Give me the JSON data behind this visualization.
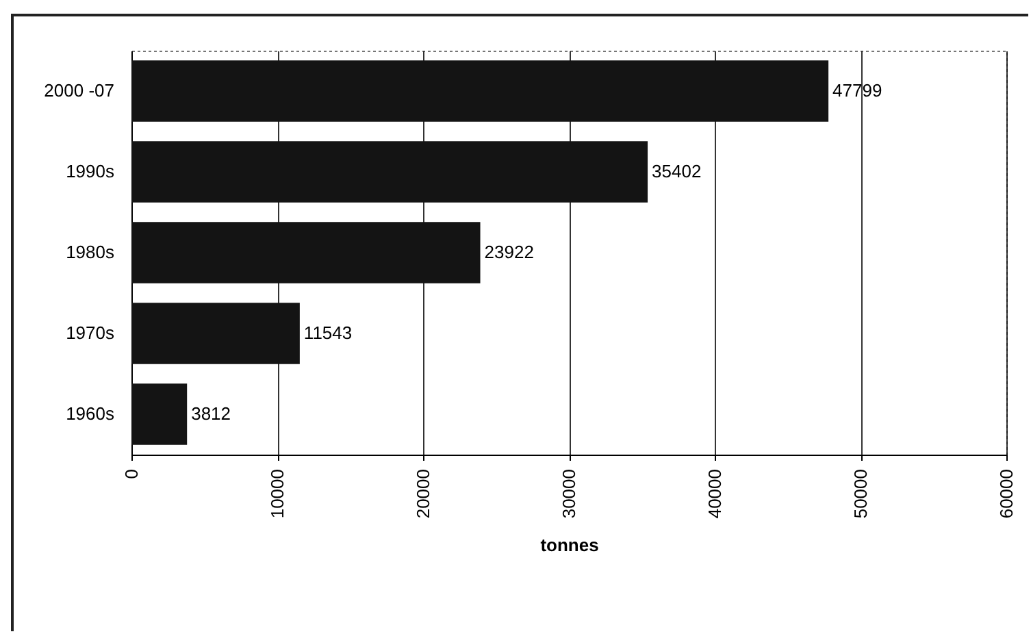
{
  "chart_data": {
    "type": "bar",
    "orientation": "horizontal",
    "categories": [
      "2000 -07",
      "1990s",
      "1980s",
      "1970s",
      "1960s"
    ],
    "values": [
      47799,
      35402,
      23922,
      11543,
      3812
    ],
    "color": "#141414",
    "xlabel": "tonnes",
    "xlim": [
      0,
      60000
    ],
    "xticks": [
      0,
      10000,
      20000,
      30000,
      40000,
      50000,
      60000
    ],
    "grid": "x",
    "data_labels": true
  }
}
